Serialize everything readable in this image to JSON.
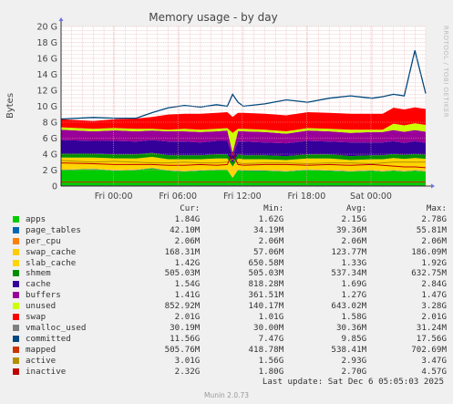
{
  "chart_data": {
    "type": "area",
    "title": "Memory usage - by day",
    "ylabel": "Bytes",
    "y_ticks": [
      "0",
      "2 G",
      "4 G",
      "6 G",
      "8 G",
      "10 G",
      "12 G",
      "14 G",
      "16 G",
      "18 G",
      "20 G"
    ],
    "ylim": [
      0,
      20
    ],
    "y_unit": "GB",
    "x_ticks": [
      "Fri 00:00",
      "Fri 06:00",
      "Fri 12:00",
      "Fri 18:00",
      "Sat 00:00"
    ],
    "x_ticks_hours": [
      3.9,
      9.9,
      15.9,
      21.9,
      27.9
    ],
    "x_range_hours": [
      -1,
      33
    ],
    "time_points_hours": [
      -1,
      2,
      4,
      6,
      7.5,
      9,
      10.5,
      12,
      13.5,
      14.5,
      15,
      15.5,
      16,
      18,
      20,
      22,
      24,
      26,
      28,
      29,
      30,
      31,
      32,
      33
    ],
    "stacked_series": [
      {
        "name": "apps",
        "color": "#00cc00",
        "values": [
          2.0,
          2.1,
          1.9,
          2.0,
          2.2,
          1.9,
          1.8,
          1.9,
          2.0,
          2.0,
          1.0,
          2.0,
          1.9,
          1.9,
          1.8,
          2.0,
          1.9,
          1.8,
          1.9,
          1.8,
          1.9,
          1.8,
          1.9,
          1.8
        ]
      },
      {
        "name": "page_tables",
        "color": "#0066b3",
        "values": [
          0.04,
          0.04,
          0.04,
          0.04,
          0.04,
          0.04,
          0.04,
          0.04,
          0.04,
          0.04,
          0.04,
          0.04,
          0.04,
          0.04,
          0.04,
          0.04,
          0.04,
          0.04,
          0.04,
          0.04,
          0.04,
          0.04,
          0.04,
          0.04
        ]
      },
      {
        "name": "per_cpu",
        "color": "#ff8000",
        "values": [
          0.002,
          0.002,
          0.002,
          0.002,
          0.002,
          0.002,
          0.002,
          0.002,
          0.002,
          0.002,
          0.002,
          0.002,
          0.002,
          0.002,
          0.002,
          0.002,
          0.002,
          0.002,
          0.002,
          0.002,
          0.002,
          0.002,
          0.002,
          0.002
        ]
      },
      {
        "name": "swap_cache",
        "color": "#ffcc00",
        "values": [
          0.12,
          0.12,
          0.13,
          0.12,
          0.12,
          0.12,
          0.12,
          0.12,
          0.12,
          0.12,
          0.12,
          0.12,
          0.12,
          0.12,
          0.12,
          0.12,
          0.12,
          0.12,
          0.12,
          0.12,
          0.17,
          0.16,
          0.17,
          0.17
        ]
      },
      {
        "name": "slab_cache",
        "color": "#ffd500",
        "values": [
          1.4,
          1.3,
          1.4,
          1.3,
          1.3,
          1.3,
          1.4,
          1.3,
          1.3,
          1.3,
          1.3,
          1.3,
          1.3,
          1.3,
          1.3,
          1.3,
          1.4,
          1.3,
          1.3,
          1.4,
          1.4,
          1.4,
          1.4,
          1.4
        ]
      },
      {
        "name": "shmem",
        "color": "#008f00",
        "values": [
          0.5,
          0.5,
          0.5,
          0.5,
          0.5,
          0.5,
          0.5,
          0.5,
          0.5,
          0.5,
          0.5,
          0.5,
          0.5,
          0.5,
          0.5,
          0.5,
          0.5,
          0.5,
          0.5,
          0.5,
          0.5,
          0.5,
          0.5,
          0.5
        ]
      },
      {
        "name": "cache",
        "color": "#330099",
        "values": [
          1.7,
          1.6,
          1.7,
          1.6,
          1.6,
          1.7,
          1.7,
          1.6,
          1.7,
          1.7,
          0.8,
          1.6,
          1.7,
          1.6,
          1.6,
          1.7,
          1.6,
          1.7,
          1.6,
          1.6,
          1.6,
          1.5,
          1.6,
          1.5
        ]
      },
      {
        "name": "buffers",
        "color": "#990099",
        "values": [
          1.3,
          1.2,
          1.3,
          1.3,
          1.2,
          1.3,
          1.3,
          1.3,
          1.2,
          1.3,
          0.4,
          1.3,
          1.3,
          1.3,
          1.2,
          1.3,
          1.3,
          1.2,
          1.3,
          1.3,
          1.4,
          1.4,
          1.4,
          1.4
        ]
      },
      {
        "name": "unused",
        "color": "#ccff00",
        "values": [
          0.3,
          0.3,
          0.3,
          0.3,
          0.2,
          0.2,
          0.3,
          0.3,
          0.3,
          0.3,
          2.5,
          0.3,
          0.3,
          0.3,
          0.3,
          0.3,
          0.3,
          0.4,
          0.3,
          0.3,
          0.8,
          0.8,
          0.85,
          0.85
        ]
      },
      {
        "name": "swap",
        "color": "#ff0000",
        "values": [
          1.0,
          1.0,
          1.1,
          1.3,
          1.5,
          1.9,
          1.9,
          2.0,
          2.0,
          2.0,
          2.0,
          2.0,
          2.0,
          2.0,
          2.0,
          2.0,
          2.0,
          2.0,
          2.0,
          2.0,
          2.0,
          2.0,
          2.0,
          2.0
        ]
      }
    ],
    "line_series": [
      {
        "name": "vmalloc_used",
        "color": "#808080",
        "values": [
          0.03,
          0.03,
          0.03,
          0.03,
          0.03,
          0.03,
          0.03,
          0.03,
          0.03,
          0.03,
          0.03,
          0.03,
          0.03,
          0.03,
          0.03,
          0.03,
          0.03,
          0.03,
          0.03,
          0.03,
          0.03,
          0.03,
          0.03,
          0.03
        ]
      },
      {
        "name": "committed",
        "color": "#00487d",
        "values": [
          8.4,
          8.6,
          8.5,
          8.5,
          9.2,
          9.8,
          10.1,
          9.9,
          10.2,
          10.0,
          11.5,
          10.5,
          10.0,
          10.3,
          10.8,
          10.5,
          11.0,
          11.3,
          11.0,
          11.2,
          11.5,
          11.3,
          17.0,
          11.6
        ]
      },
      {
        "name": "mapped",
        "color": "#cc3300",
        "values": [
          0.5,
          0.5,
          0.5,
          0.5,
          0.5,
          0.5,
          0.5,
          0.5,
          0.5,
          0.5,
          0.5,
          0.5,
          0.5,
          0.5,
          0.5,
          0.5,
          0.5,
          0.5,
          0.5,
          0.5,
          0.5,
          0.5,
          0.5,
          0.5
        ]
      },
      {
        "name": "active",
        "color": "#b38f00",
        "values": [
          3.2,
          3.0,
          3.1,
          3.0,
          2.9,
          2.9,
          3.0,
          2.9,
          2.9,
          3.0,
          3.4,
          2.9,
          2.8,
          2.9,
          2.9,
          2.8,
          2.9,
          2.9,
          2.8,
          2.9,
          3.0,
          3.0,
          3.0,
          3.0
        ]
      },
      {
        "name": "inactive",
        "color": "#bf0000",
        "values": [
          2.9,
          2.8,
          2.7,
          2.7,
          2.7,
          2.6,
          2.6,
          2.7,
          2.6,
          2.7,
          4.2,
          2.7,
          2.6,
          2.7,
          2.7,
          2.6,
          2.7,
          2.6,
          2.7,
          2.6,
          2.5,
          2.4,
          2.4,
          2.3
        ]
      }
    ]
  },
  "legend": {
    "headers": {
      "cur": "Cur:",
      "min": "Min:",
      "avg": "Avg:",
      "max": "Max:"
    },
    "rows": [
      {
        "name": "apps",
        "color": "#00cc00",
        "cur": "1.84G",
        "min": "1.62G",
        "avg": "2.15G",
        "max": "2.78G"
      },
      {
        "name": "page_tables",
        "color": "#0066b3",
        "cur": "42.10M",
        "min": "34.19M",
        "avg": "39.36M",
        "max": "55.81M"
      },
      {
        "name": "per_cpu",
        "color": "#ff8000",
        "cur": "2.06M",
        "min": "2.06M",
        "avg": "2.06M",
        "max": "2.06M"
      },
      {
        "name": "swap_cache",
        "color": "#ffcc00",
        "cur": "168.31M",
        "min": "57.06M",
        "avg": "123.77M",
        "max": "186.09M"
      },
      {
        "name": "slab_cache",
        "color": "#ffd500",
        "cur": "1.42G",
        "min": "650.58M",
        "avg": "1.33G",
        "max": "1.92G"
      },
      {
        "name": "shmem",
        "color": "#008f00",
        "cur": "505.03M",
        "min": "505.03M",
        "avg": "537.34M",
        "max": "632.75M"
      },
      {
        "name": "cache",
        "color": "#330099",
        "cur": "1.54G",
        "min": "818.28M",
        "avg": "1.69G",
        "max": "2.84G"
      },
      {
        "name": "buffers",
        "color": "#990099",
        "cur": "1.41G",
        "min": "361.51M",
        "avg": "1.27G",
        "max": "1.47G"
      },
      {
        "name": "unused",
        "color": "#ccff00",
        "cur": "852.92M",
        "min": "140.17M",
        "avg": "643.02M",
        "max": "3.28G"
      },
      {
        "name": "swap",
        "color": "#ff0000",
        "cur": "2.01G",
        "min": "1.01G",
        "avg": "1.58G",
        "max": "2.01G"
      },
      {
        "name": "vmalloc_used",
        "color": "#808080",
        "cur": "30.19M",
        "min": "30.00M",
        "avg": "30.36M",
        "max": "31.24M"
      },
      {
        "name": "committed",
        "color": "#00487d",
        "cur": "11.56G",
        "min": "7.47G",
        "avg": "9.85G",
        "max": "17.56G"
      },
      {
        "name": "mapped",
        "color": "#cc3300",
        "cur": "505.76M",
        "min": "418.78M",
        "avg": "538.41M",
        "max": "702.69M"
      },
      {
        "name": "active",
        "color": "#b38f00",
        "cur": "3.01G",
        "min": "1.56G",
        "avg": "2.93G",
        "max": "3.47G"
      },
      {
        "name": "inactive",
        "color": "#bf0000",
        "cur": "2.32G",
        "min": "1.80G",
        "avg": "2.70G",
        "max": "4.57G"
      }
    ]
  },
  "last_update": "Last update: Sat Dec  6 05:05:03 2025",
  "vertical_label": "RRDTOOL / TOBI OETIKER",
  "footer": "Munin 2.0.73"
}
